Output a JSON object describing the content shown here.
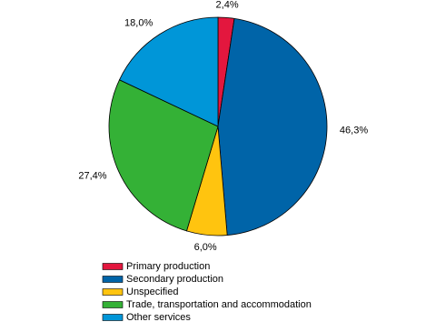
{
  "chart_data": {
    "type": "pie",
    "categories": [
      "Primary production",
      "Secondary production",
      "Unspecified",
      "Trade, transportation and accommodation",
      "Other services"
    ],
    "values": [
      2.4,
      46.3,
      6.0,
      27.4,
      18.0
    ],
    "value_labels": [
      "2,4%",
      "46,3%",
      "6,0%",
      "27,4%",
      "18,0%"
    ],
    "colors": [
      "#e3173e",
      "#0064a8",
      "#ffc40f",
      "#34b136",
      "#0096d8"
    ],
    "legend": "bottom"
  }
}
